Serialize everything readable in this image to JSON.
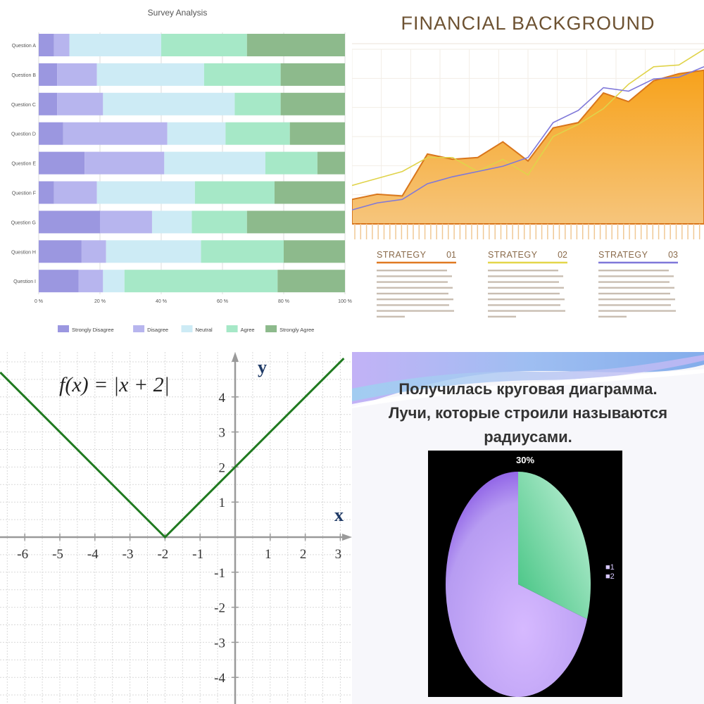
{
  "chart_data": [
    {
      "type": "bar",
      "orientation": "horizontal-stacked-percent",
      "title": "Survey Analysis",
      "categories": [
        "Question A",
        "Question B",
        "Question C",
        "Question D",
        "Question E",
        "Question F",
        "Question G",
        "Question H",
        "Question I"
      ],
      "series": [
        {
          "name": "Strongly Disagree",
          "color": "#9b97e0",
          "values": [
            5,
            6,
            6,
            8,
            15,
            5,
            20,
            14,
            13
          ]
        },
        {
          "name": "Disagree",
          "color": "#b7b5ee",
          "values": [
            5,
            13,
            15,
            34,
            26,
            14,
            17,
            8,
            8
          ]
        },
        {
          "name": "Neutral",
          "color": "#cdebf5",
          "values": [
            30,
            35,
            43,
            19,
            33,
            32,
            13,
            31,
            7
          ]
        },
        {
          "name": "Agree",
          "color": "#a6e8c7",
          "values": [
            28,
            25,
            15,
            21,
            17,
            26,
            18,
            27,
            50
          ]
        },
        {
          "name": "Strongly Agree",
          "color": "#8dba8c",
          "values": [
            32,
            21,
            21,
            18,
            9,
            23,
            32,
            20,
            22
          ]
        }
      ],
      "xticks": [
        "0 %",
        "20 %",
        "40 %",
        "60 %",
        "80 %",
        "100 %"
      ],
      "xlim": [
        0,
        100
      ],
      "legend": "bottom"
    },
    {
      "type": "line",
      "title": "FINANCIAL BACKGROUND",
      "x": [
        0,
        1,
        2,
        3,
        4,
        5,
        6,
        7,
        8,
        9,
        10,
        11,
        12,
        13,
        14
      ],
      "series": [
        {
          "name": "area",
          "color": "#f29a1e",
          "values": [
            14,
            17,
            16,
            40,
            37,
            38,
            47,
            36,
            55,
            58,
            75,
            70,
            82,
            86,
            88
          ]
        },
        {
          "name": "line-yellow",
          "color": "#e0d34a",
          "values": [
            22,
            26,
            30,
            38,
            38,
            30,
            37,
            28,
            50,
            57,
            66,
            80,
            90,
            91,
            100
          ]
        },
        {
          "name": "line-purple",
          "color": "#7f78d9",
          "values": [
            8,
            12,
            14,
            23,
            27,
            30,
            33,
            38,
            58,
            65,
            78,
            76,
            83,
            84,
            90
          ]
        }
      ],
      "ylim": [
        0,
        100
      ],
      "strategies": [
        {
          "label": "STRATEGY",
          "number": "01",
          "color": "#e07a22"
        },
        {
          "label": "STRATEGY",
          "number": "02",
          "color": "#e3d64a"
        },
        {
          "label": "STRATEGY",
          "number": "03",
          "color": "#7f78d9"
        }
      ]
    },
    {
      "type": "line",
      "title": "f(x) = |x + 2|",
      "xlabel": "x",
      "ylabel": "y",
      "x": [
        -6.7,
        -2,
        3.1
      ],
      "y": [
        4.7,
        0,
        5.1
      ],
      "xlim": [
        -6.7,
        3.3
      ],
      "ylim": [
        -4.6,
        5
      ],
      "xticks": [
        "-6",
        "-5",
        "-4",
        "-3",
        "-2",
        "-1",
        "1",
        "2",
        "3"
      ],
      "yticks": [
        "4",
        "3",
        "2",
        "1",
        "-1",
        "-2",
        "-3",
        "-4"
      ],
      "line_color": "#207a20",
      "grid": true
    },
    {
      "type": "pie",
      "title": "Получилась круговая диаграмма. Лучи, которые строили называются радиусами.",
      "title_lines": [
        "Получилась круговая диаграмма.",
        "Лучи, которые строили называются",
        "радиусами."
      ],
      "labels": [
        "1",
        "2"
      ],
      "values": [
        30,
        70
      ],
      "colors": [
        "#7ee0b0",
        "#b79cf2"
      ],
      "data_label": "30%",
      "legend": "right",
      "legend_items": [
        "■1",
        "■2"
      ]
    }
  ]
}
